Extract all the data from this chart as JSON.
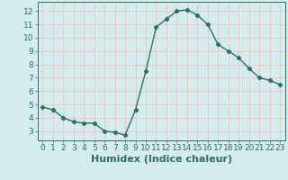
{
  "x": [
    0,
    1,
    2,
    3,
    4,
    5,
    6,
    7,
    8,
    9,
    10,
    11,
    12,
    13,
    14,
    15,
    16,
    17,
    18,
    19,
    20,
    21,
    22,
    23
  ],
  "y": [
    4.8,
    4.6,
    4.0,
    3.7,
    3.6,
    3.6,
    3.0,
    2.9,
    2.7,
    4.6,
    7.5,
    10.8,
    11.4,
    12.0,
    12.1,
    11.7,
    11.0,
    9.5,
    9.0,
    8.5,
    7.7,
    7.0,
    6.8,
    6.5
  ],
  "line_color": "#2d7068",
  "marker": "D",
  "markersize": 2.2,
  "linewidth": 1.0,
  "xlabel": "Humidex (Indice chaleur)",
  "xlim": [
    -0.5,
    23.5
  ],
  "ylim": [
    2.3,
    12.7
  ],
  "yticks": [
    3,
    4,
    5,
    6,
    7,
    8,
    9,
    10,
    11,
    12
  ],
  "xticks": [
    0,
    1,
    2,
    3,
    4,
    5,
    6,
    7,
    8,
    9,
    10,
    11,
    12,
    13,
    14,
    15,
    16,
    17,
    18,
    19,
    20,
    21,
    22,
    23
  ],
  "bg_color": "#d5ecec",
  "grid_color": "#f5c0c0",
  "tick_label_fontsize": 6.5,
  "xlabel_fontsize": 8.0
}
